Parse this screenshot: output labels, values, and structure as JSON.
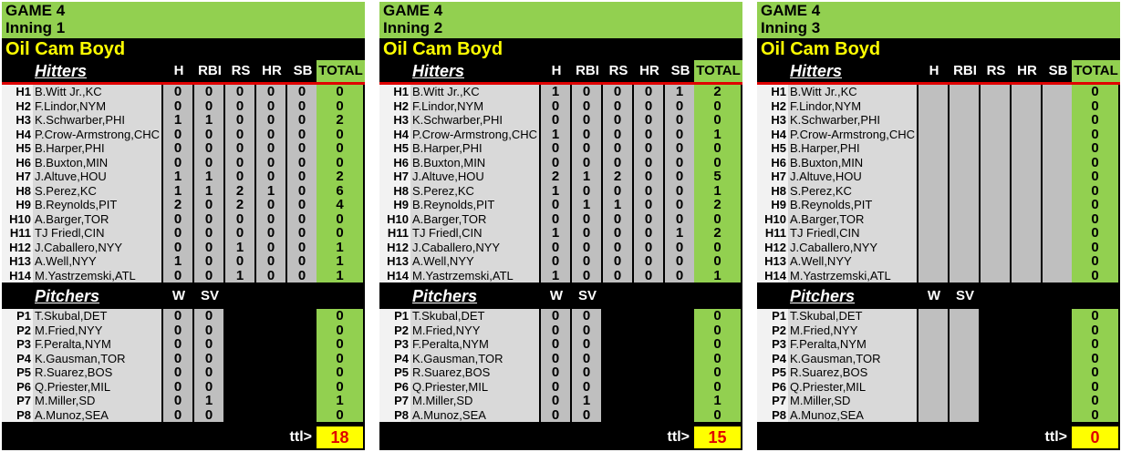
{
  "labels": {
    "hitters": "Hitters",
    "pitchers": "Pitchers",
    "hit_cols": [
      "H",
      "RBI",
      "RS",
      "HR",
      "SB"
    ],
    "pit_cols": [
      "W",
      "SV"
    ],
    "total": "TOTAL",
    "ttl": "ttl>"
  },
  "colors": {
    "header_green": "#92d050",
    "team_yellow": "#ffff00",
    "total_red": "#e00000"
  },
  "hitters": [
    [
      "H1",
      "B.Witt Jr.,KC"
    ],
    [
      "H2",
      "F.Lindor,NYM"
    ],
    [
      "H3",
      "K.Schwarber,PHI"
    ],
    [
      "H4",
      "P.Crow-Armstrong,CHC"
    ],
    [
      "H5",
      "B.Harper,PHI"
    ],
    [
      "H6",
      "B.Buxton,MIN"
    ],
    [
      "H7",
      "J.Altuve,HOU"
    ],
    [
      "H8",
      "S.Perez,KC"
    ],
    [
      "H9",
      "B.Reynolds,PIT"
    ],
    [
      "H10",
      "A.Barger,TOR"
    ],
    [
      "H11",
      "TJ Friedl,CIN"
    ],
    [
      "H12",
      "J.Caballero,NYY"
    ],
    [
      "H13",
      "A.Well,NYY"
    ],
    [
      "H14",
      "M.Yastrzemski,ATL"
    ]
  ],
  "pitchers": [
    [
      "P1",
      "T.Skubal,DET"
    ],
    [
      "P2",
      "M.Fried,NYY"
    ],
    [
      "P3",
      "F.Peralta,NYM"
    ],
    [
      "P4",
      "K.Gausman,TOR"
    ],
    [
      "P5",
      "R.Suarez,BOS"
    ],
    [
      "P6",
      "Q.Priester,MIL"
    ],
    [
      "P7",
      "M.Miller,SD"
    ],
    [
      "P8",
      "A.Munoz,SEA"
    ]
  ],
  "panels": [
    {
      "game": "GAME 4",
      "inning": "Inning 1",
      "team": "Oil Cam Boyd",
      "grand_total": "18",
      "hit_stats": [
        [
          0,
          0,
          0,
          0,
          0,
          0
        ],
        [
          0,
          0,
          0,
          0,
          0,
          0
        ],
        [
          1,
          1,
          0,
          0,
          0,
          2
        ],
        [
          0,
          0,
          0,
          0,
          0,
          0
        ],
        [
          0,
          0,
          0,
          0,
          0,
          0
        ],
        [
          0,
          0,
          0,
          0,
          0,
          0
        ],
        [
          1,
          1,
          0,
          0,
          0,
          2
        ],
        [
          1,
          1,
          2,
          1,
          0,
          6
        ],
        [
          2,
          0,
          2,
          0,
          0,
          4
        ],
        [
          0,
          0,
          0,
          0,
          0,
          0
        ],
        [
          0,
          0,
          0,
          0,
          0,
          0
        ],
        [
          0,
          0,
          1,
          0,
          0,
          1
        ],
        [
          1,
          0,
          0,
          0,
          0,
          1
        ],
        [
          0,
          0,
          1,
          0,
          0,
          1
        ]
      ],
      "pit_stats": [
        [
          0,
          0,
          0
        ],
        [
          0,
          0,
          0
        ],
        [
          0,
          0,
          0
        ],
        [
          0,
          0,
          0
        ],
        [
          0,
          0,
          0
        ],
        [
          0,
          0,
          0
        ],
        [
          0,
          1,
          1
        ],
        [
          0,
          0,
          0
        ]
      ]
    },
    {
      "game": "GAME 4",
      "inning": "Inning 2",
      "team": "Oil Cam Boyd",
      "grand_total": "15",
      "hit_stats": [
        [
          1,
          0,
          0,
          0,
          1,
          2
        ],
        [
          0,
          0,
          0,
          0,
          0,
          0
        ],
        [
          0,
          0,
          0,
          0,
          0,
          0
        ],
        [
          1,
          0,
          0,
          0,
          0,
          1
        ],
        [
          0,
          0,
          0,
          0,
          0,
          0
        ],
        [
          0,
          0,
          0,
          0,
          0,
          0
        ],
        [
          2,
          1,
          2,
          0,
          0,
          5
        ],
        [
          1,
          0,
          0,
          0,
          0,
          1
        ],
        [
          0,
          1,
          1,
          0,
          0,
          2
        ],
        [
          0,
          0,
          0,
          0,
          0,
          0
        ],
        [
          1,
          0,
          0,
          0,
          1,
          2
        ],
        [
          0,
          0,
          0,
          0,
          0,
          0
        ],
        [
          0,
          0,
          0,
          0,
          0,
          0
        ],
        [
          1,
          0,
          0,
          0,
          0,
          1
        ]
      ],
      "pit_stats": [
        [
          0,
          0,
          0
        ],
        [
          0,
          0,
          0
        ],
        [
          0,
          0,
          0
        ],
        [
          0,
          0,
          0
        ],
        [
          0,
          0,
          0
        ],
        [
          0,
          0,
          0
        ],
        [
          0,
          1,
          1
        ],
        [
          0,
          0,
          0
        ]
      ]
    },
    {
      "game": "GAME 4",
      "inning": "Inning 3",
      "team": "Oil Cam Boyd",
      "grand_total": "0",
      "hit_stats": [
        [
          "",
          "",
          "",
          "",
          "",
          0
        ],
        [
          "",
          "",
          "",
          "",
          "",
          0
        ],
        [
          "",
          "",
          "",
          "",
          "",
          0
        ],
        [
          "",
          "",
          "",
          "",
          "",
          0
        ],
        [
          "",
          "",
          "",
          "",
          "",
          0
        ],
        [
          "",
          "",
          "",
          "",
          "",
          0
        ],
        [
          "",
          "",
          "",
          "",
          "",
          0
        ],
        [
          "",
          "",
          "",
          "",
          "",
          0
        ],
        [
          "",
          "",
          "",
          "",
          "",
          0
        ],
        [
          "",
          "",
          "",
          "",
          "",
          0
        ],
        [
          "",
          "",
          "",
          "",
          "",
          0
        ],
        [
          "",
          "",
          "",
          "",
          "",
          0
        ],
        [
          "",
          "",
          "",
          "",
          "",
          0
        ],
        [
          "",
          "",
          "",
          "",
          "",
          0
        ]
      ],
      "pit_stats": [
        [
          "",
          "",
          0
        ],
        [
          "",
          "",
          0
        ],
        [
          "",
          "",
          0
        ],
        [
          "",
          "",
          0
        ],
        [
          "",
          "",
          0
        ],
        [
          "",
          "",
          0
        ],
        [
          "",
          "",
          0
        ],
        [
          "",
          "",
          0
        ]
      ]
    }
  ]
}
